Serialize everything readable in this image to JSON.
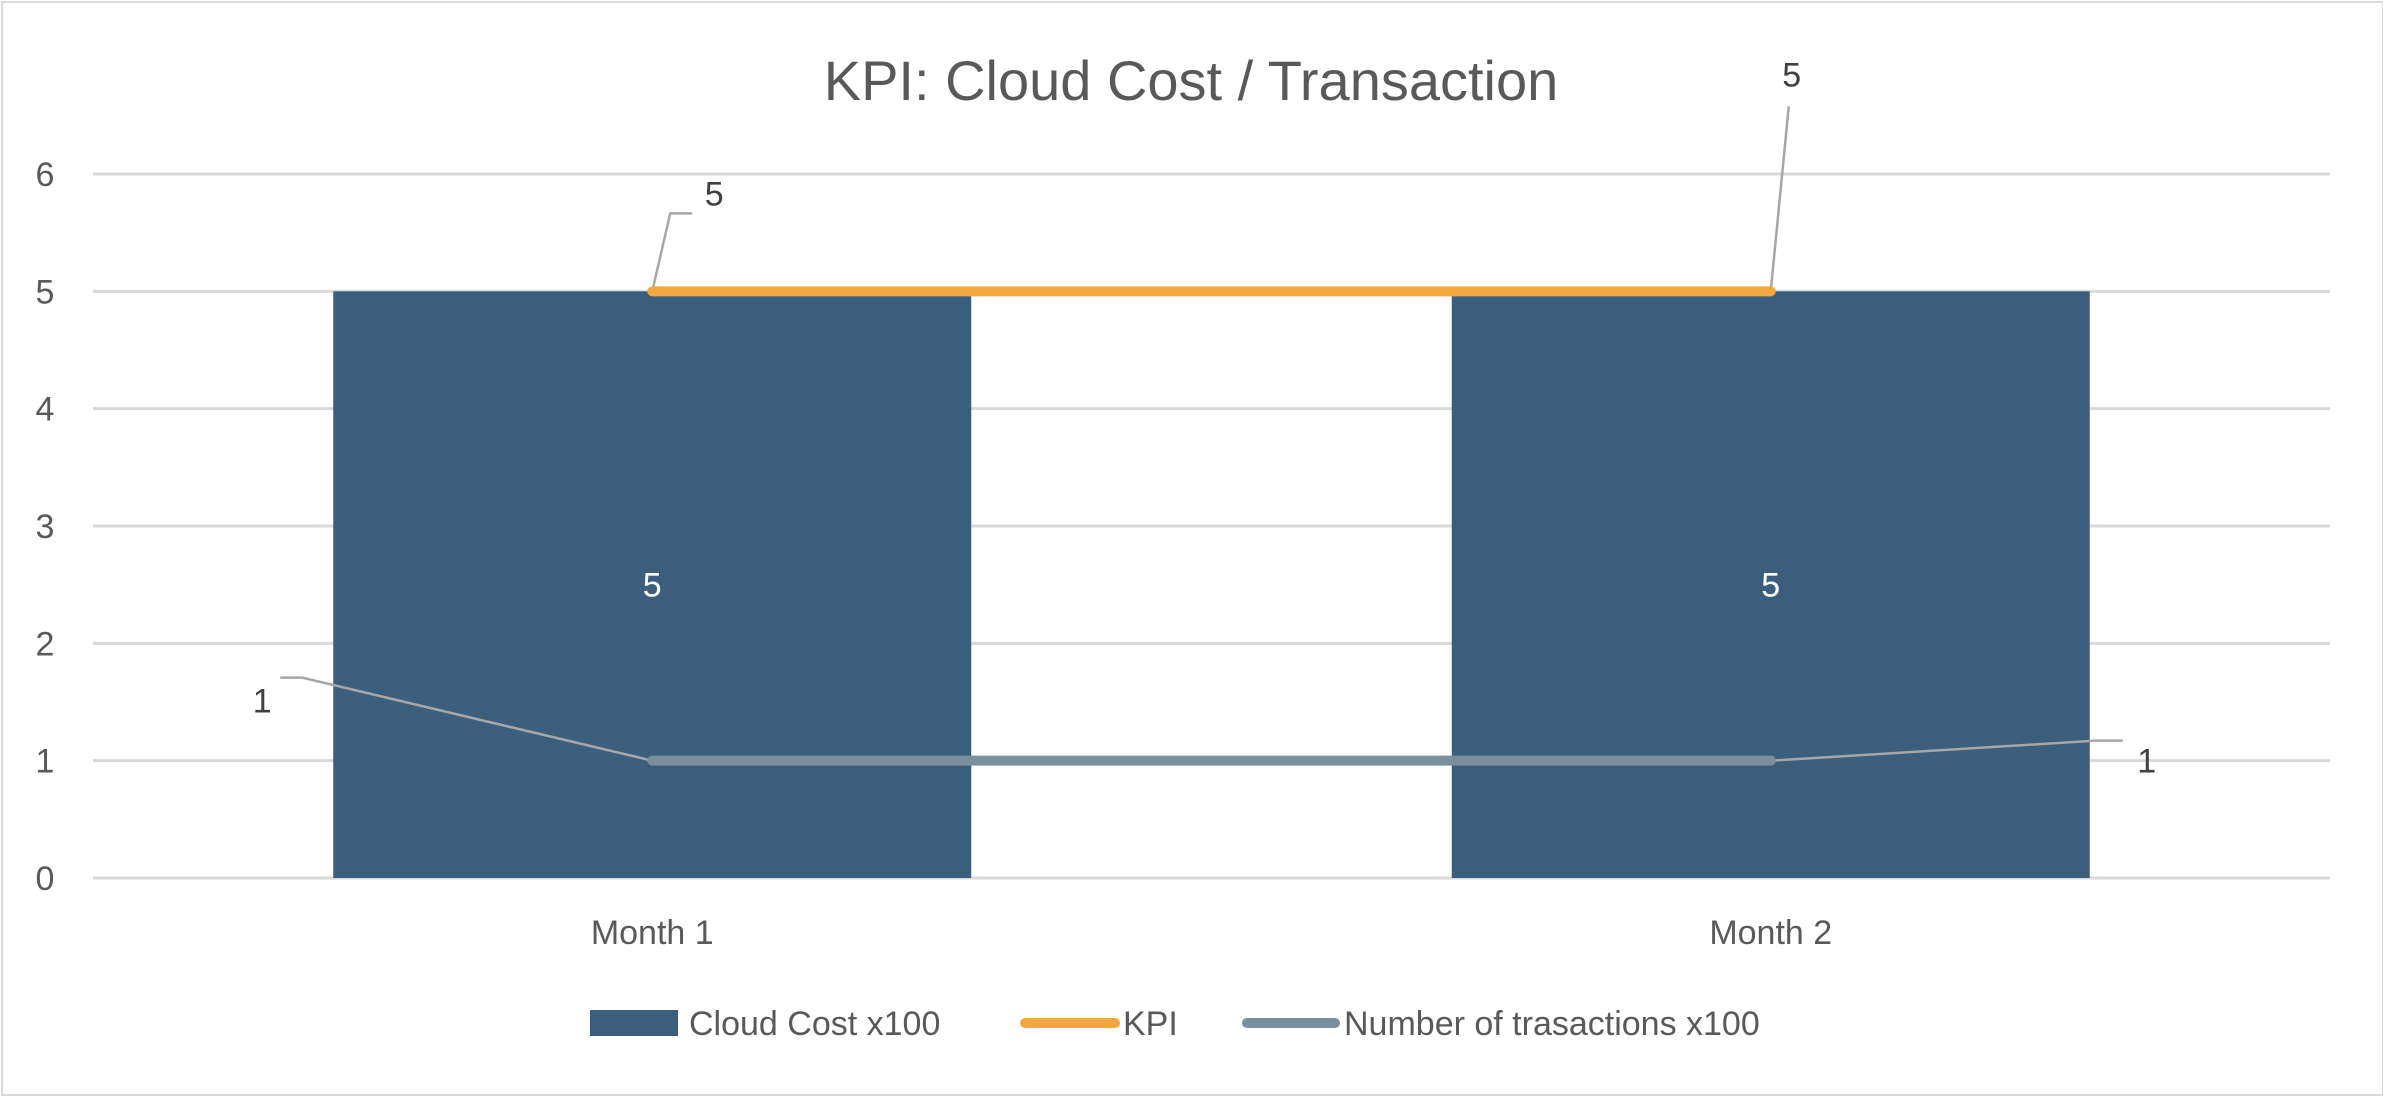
{
  "chart_data": {
    "type": "bar",
    "title": "KPI: Cloud Cost / Transaction",
    "categories": [
      "Month 1",
      "Month 2"
    ],
    "ylim": [
      0,
      6
    ],
    "yticks": [
      "0",
      "1",
      "2",
      "3",
      "4",
      "5",
      "6"
    ],
    "grid": true,
    "legend_position": "bottom",
    "series": [
      {
        "name": "Cloud Cost x100",
        "type": "bar",
        "values": [
          5,
          5
        ],
        "color": "#3a5e7c"
      },
      {
        "name": "KPI",
        "type": "line",
        "values": [
          5,
          5
        ],
        "color": "#f4a83c"
      },
      {
        "name": "Number of trasactions x100",
        "type": "line",
        "values": [
          1,
          1
        ],
        "color": "#7a8f9c"
      }
    ],
    "data_labels": {
      "bar": [
        "5",
        "5"
      ],
      "kpi": [
        "5",
        "5"
      ],
      "transactions": [
        "1",
        "1"
      ]
    }
  }
}
